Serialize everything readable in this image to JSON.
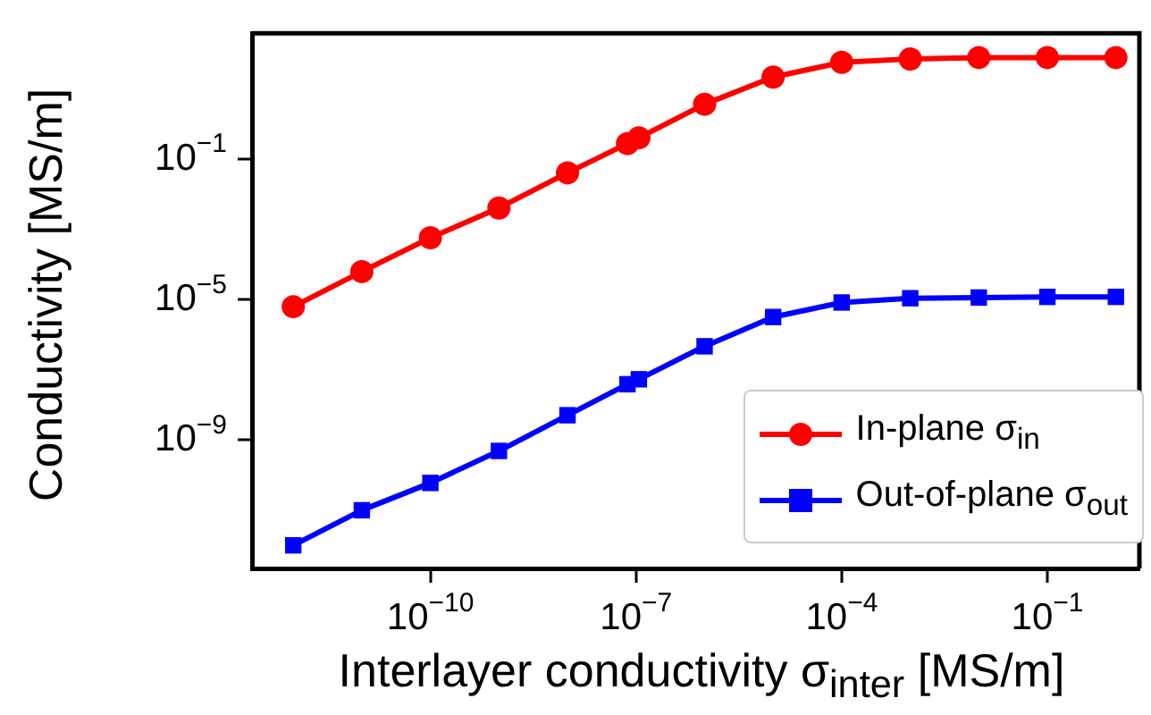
{
  "chart_data": {
    "type": "line",
    "xlabel": "Interlayer conductivity σ$_{inter}$ [MS/m]",
    "ylabel": "Conductivity [MS/m]",
    "x": [
      1e-12,
      1e-11,
      1e-10,
      1e-09,
      1e-08,
      7.5e-08,
      1.1e-07,
      1e-06,
      1e-05,
      0.0001,
      0.001,
      0.01,
      0.1,
      1
    ],
    "series": [
      {
        "name": "In-plane σ$_{in}$",
        "color": "#ff0000",
        "marker": "circle",
        "values": [
          6.3e-06,
          6.3e-05,
          0.00058,
          0.0041,
          0.041,
          0.28,
          0.41,
          3.7,
          22,
          58,
          72,
          79,
          79,
          79
        ]
      },
      {
        "name": "Out-of-plane σ$_{out}$",
        "color": "#0000ff",
        "marker": "square",
        "values": [
          1e-12,
          1e-11,
          6e-11,
          4.9e-10,
          5.1e-09,
          3.9e-08,
          5.4e-08,
          4.7e-07,
          3.2e-06,
          8.3e-06,
          1.1e-05,
          1.15e-05,
          1.2e-05,
          1.2e-05
        ]
      }
    ],
    "log": "xy",
    "xlim": [
      2.5e-13,
      2.2
    ],
    "ylim": [
      2.2e-13,
      390
    ],
    "xticks": [
      {
        "value": 1e-10,
        "label": "10$^{−10}$"
      },
      {
        "value": 1e-07,
        "label": "10$^{−7}$"
      },
      {
        "value": 0.0001,
        "label": "10$^{−4}$"
      },
      {
        "value": 0.1,
        "label": "10$^{−1}$"
      }
    ],
    "yticks": [
      {
        "value": 1e-09,
        "label": "10$^{−9}$"
      },
      {
        "value": 1e-05,
        "label": "10$^{−5}$"
      },
      {
        "value": 0.1,
        "label": "10$^{−1}$"
      }
    ],
    "legend": "bottom right",
    "line_style": "solid"
  }
}
